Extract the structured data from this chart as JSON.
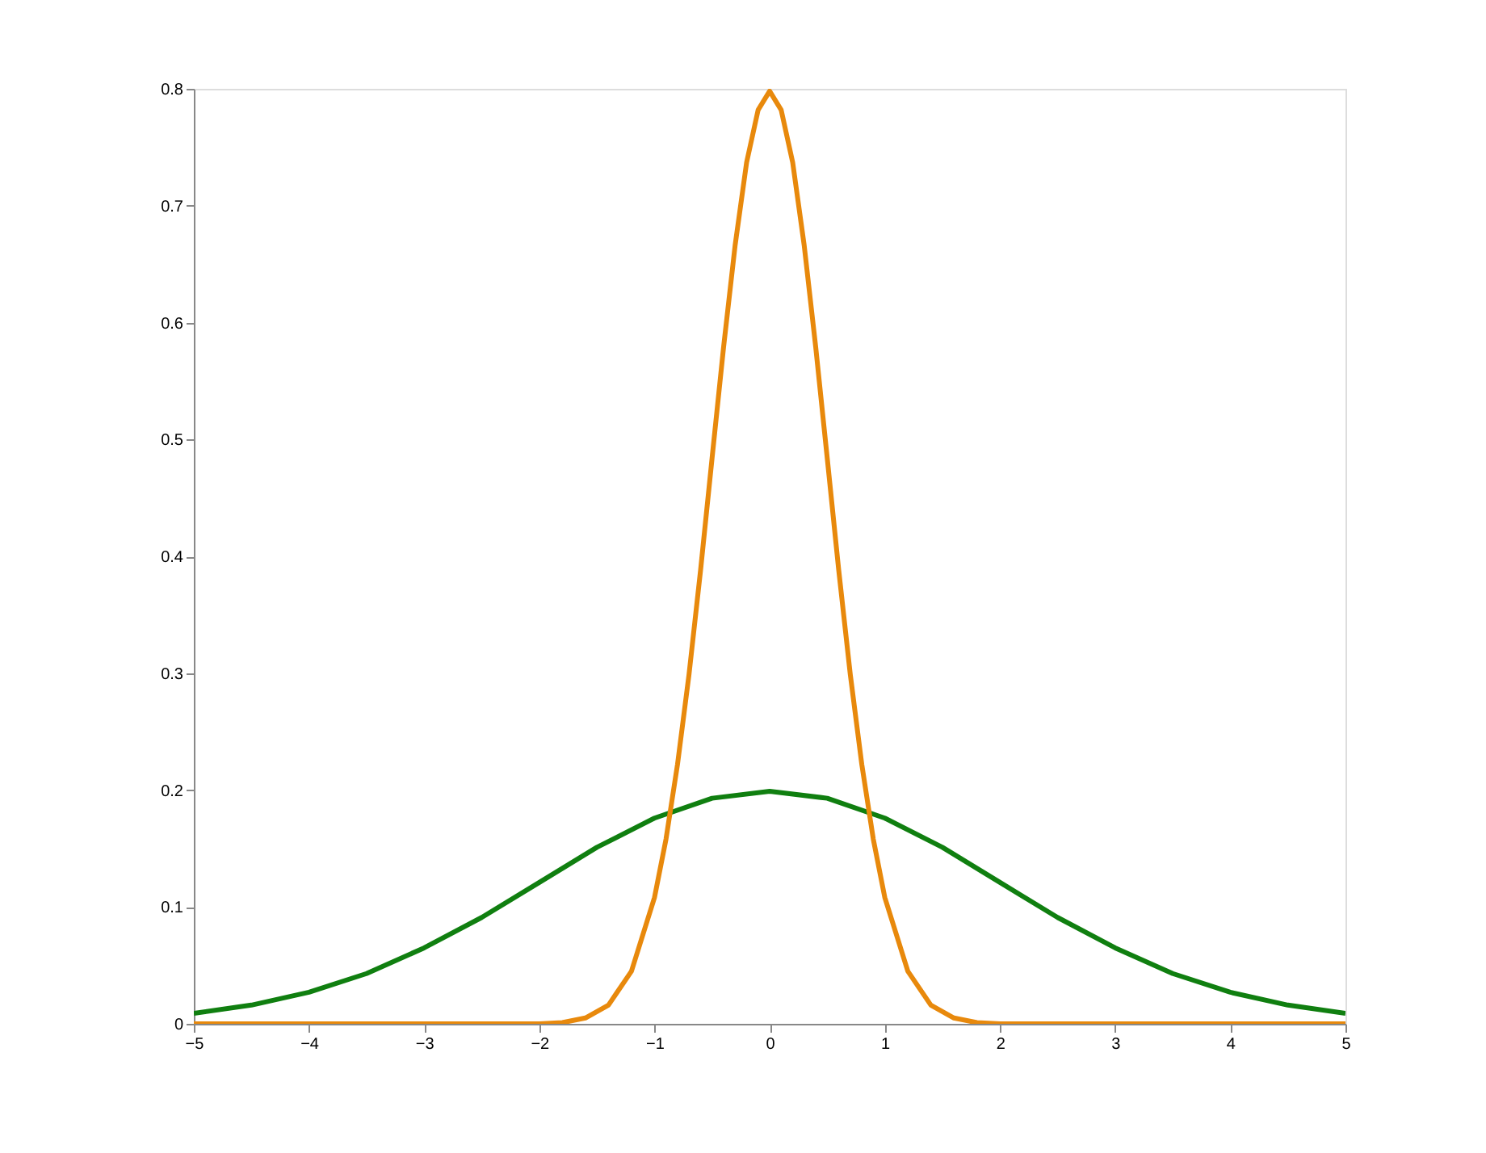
{
  "chart_data": {
    "type": "line",
    "xlim": [
      -5,
      5
    ],
    "ylim": [
      0,
      0.8
    ],
    "xticks": [
      -5,
      -4,
      -3,
      -2,
      -1,
      0,
      1,
      2,
      3,
      4,
      5
    ],
    "yticks": [
      0,
      0.1,
      0.2,
      0.3,
      0.4,
      0.5,
      0.6,
      0.7,
      0.8
    ],
    "grid": false,
    "marker": "none",
    "line_style": "solid",
    "series": [
      {
        "color": "#107f10",
        "x": [
          -5,
          -4.5,
          -4,
          -3.5,
          -3,
          -2.5,
          -2,
          -1.5,
          -1,
          -0.5,
          0,
          0.5,
          1,
          1.5,
          2,
          2.5,
          3,
          3.5,
          4,
          4.5,
          5
        ],
        "values": [
          0.009,
          0.016,
          0.027,
          0.043,
          0.065,
          0.091,
          0.121,
          0.151,
          0.176,
          0.193,
          0.199,
          0.193,
          0.176,
          0.151,
          0.121,
          0.091,
          0.065,
          0.043,
          0.027,
          0.016,
          0.009
        ]
      },
      {
        "color": "#e8890c",
        "x": [
          -5,
          -2,
          -1.8,
          -1.6,
          -1.4,
          -1.2,
          -1,
          -0.9,
          -0.8,
          -0.7,
          -0.6,
          -0.5,
          -0.4,
          -0.3,
          -0.2,
          -0.1,
          0,
          0.1,
          0.2,
          0.3,
          0.4,
          0.5,
          0.6,
          0.7,
          0.8,
          0.9,
          1,
          1.2,
          1.4,
          1.6,
          1.8,
          2,
          5
        ],
        "values": [
          0,
          0,
          0.001,
          0.005,
          0.016,
          0.045,
          0.108,
          0.158,
          0.222,
          0.299,
          0.388,
          0.484,
          0.579,
          0.666,
          0.737,
          0.782,
          0.798,
          0.782,
          0.737,
          0.666,
          0.579,
          0.484,
          0.388,
          0.299,
          0.222,
          0.158,
          0.108,
          0.045,
          0.016,
          0.005,
          0.001,
          0,
          0
        ]
      }
    ]
  }
}
